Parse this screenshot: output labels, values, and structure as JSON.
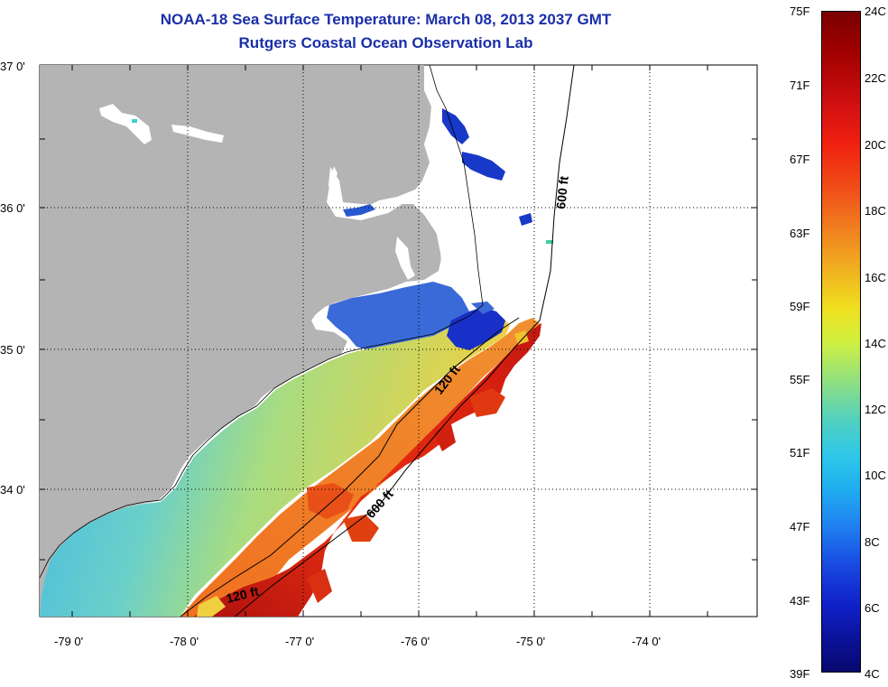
{
  "title": {
    "line1": "NOAA-18 Sea Surface Temperature:  March 08, 2013 2037 GMT",
    "line2": "Rutgers Coastal Ocean Observation Lab"
  },
  "axes": {
    "y_labels": [
      "37 0'",
      "36 0'",
      "35 0'",
      "34 0'"
    ],
    "x_labels": [
      "-79 0'",
      "-78 0'",
      "-77 0'",
      "-76 0'",
      "-75 0'",
      "-74 0'"
    ]
  },
  "contours": {
    "label_120_a": "120 ft",
    "label_120_b": "120 ft",
    "label_600_a": "600 ft",
    "label_600_b": "600 ft"
  },
  "colorbar": {
    "fahrenheit": [
      "75F",
      "71F",
      "67F",
      "63F",
      "59F",
      "55F",
      "51F",
      "47F",
      "43F",
      "39F"
    ],
    "celsius": [
      "24C",
      "22C",
      "20C",
      "18C",
      "16C",
      "14C",
      "12C",
      "10C",
      "8C",
      "6C",
      "4C"
    ]
  },
  "colors": {
    "title": "#1a2fa8",
    "land": "#b4b4b4",
    "cold": "#1020c0",
    "warm": "#c01010"
  }
}
